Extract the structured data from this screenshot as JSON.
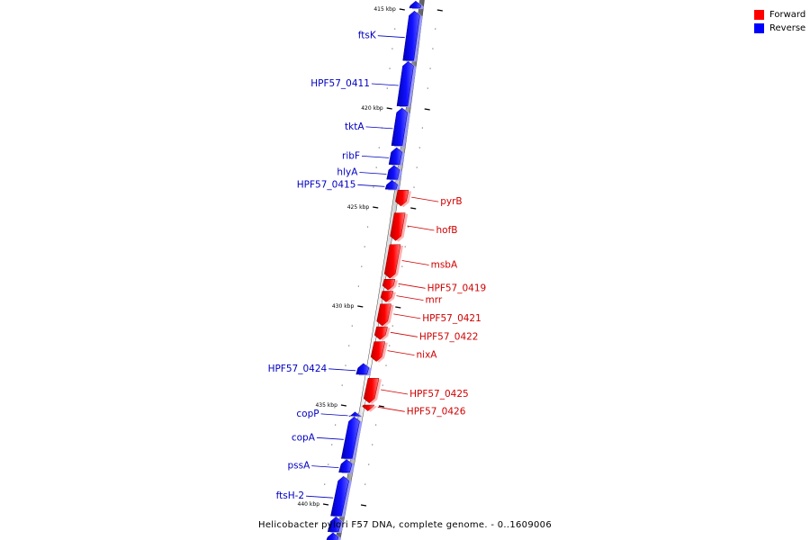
{
  "legend": {
    "items": [
      {
        "label": "Forward",
        "color": "#ff0000"
      },
      {
        "label": "Reverse",
        "color": "#0000ff"
      }
    ]
  },
  "caption": "Helicobacter pylori F57 DNA, complete genome. - 0..1609006",
  "axis": {
    "unit": "kbp",
    "major_ticks": [
      {
        "kbp": 415,
        "label": "415 kbp"
      },
      {
        "kbp": 420,
        "label": "420 kbp"
      },
      {
        "kbp": 425,
        "label": "425 kbp"
      },
      {
        "kbp": 430,
        "label": "430 kbp"
      },
      {
        "kbp": 435,
        "label": "435 kbp"
      },
      {
        "kbp": 440,
        "label": "440 kbp"
      }
    ]
  },
  "genes": [
    {
      "name": "",
      "strand": "reverse",
      "start_kbp": 414.6,
      "end_kbp": 414.95
    },
    {
      "name": "ftsK",
      "strand": "reverse",
      "start_kbp": 415.1,
      "end_kbp": 417.6
    },
    {
      "name": "HPF57_0411",
      "strand": "reverse",
      "start_kbp": 417.65,
      "end_kbp": 419.9
    },
    {
      "name": "tktA",
      "strand": "reverse",
      "start_kbp": 420.0,
      "end_kbp": 421.9
    },
    {
      "name": "ribF",
      "strand": "reverse",
      "start_kbp": 422.0,
      "end_kbp": 422.85
    },
    {
      "name": "hlyA",
      "strand": "reverse",
      "start_kbp": 422.9,
      "end_kbp": 423.6
    },
    {
      "name": "HPF57_0415",
      "strand": "reverse",
      "start_kbp": 423.65,
      "end_kbp": 424.1
    },
    {
      "name": "pyrB",
      "strand": "forward",
      "start_kbp": 424.15,
      "end_kbp": 424.95
    },
    {
      "name": "hofB",
      "strand": "forward",
      "start_kbp": 425.3,
      "end_kbp": 426.7
    },
    {
      "name": "msbA",
      "strand": "forward",
      "start_kbp": 426.9,
      "end_kbp": 428.6
    },
    {
      "name": "HPF57_0419",
      "strand": "forward",
      "start_kbp": 428.65,
      "end_kbp": 429.2
    },
    {
      "name": "mrr",
      "strand": "forward",
      "start_kbp": 429.25,
      "end_kbp": 429.8
    },
    {
      "name": "HPF57_0421",
      "strand": "forward",
      "start_kbp": 429.9,
      "end_kbp": 431.0
    },
    {
      "name": "HPF57_0422",
      "strand": "forward",
      "start_kbp": 431.05,
      "end_kbp": 431.7
    },
    {
      "name": "nixA",
      "strand": "forward",
      "start_kbp": 431.8,
      "end_kbp": 432.8
    },
    {
      "name": "HPF57_0424",
      "strand": "reverse",
      "start_kbp": 432.9,
      "end_kbp": 433.45
    },
    {
      "name": "HPF57_0425",
      "strand": "forward",
      "start_kbp": 433.65,
      "end_kbp": 434.9
    },
    {
      "name": "HPF57_0426",
      "strand": "forward",
      "start_kbp": 435.0,
      "end_kbp": 435.3
    },
    {
      "name": "copP",
      "strand": "reverse",
      "start_kbp": 435.35,
      "end_kbp": 435.55
    },
    {
      "name": "copA",
      "strand": "reverse",
      "start_kbp": 435.6,
      "end_kbp": 437.7
    },
    {
      "name": "pssA",
      "strand": "reverse",
      "start_kbp": 437.75,
      "end_kbp": 438.4
    },
    {
      "name": "ftsH-2",
      "strand": "reverse",
      "start_kbp": 438.6,
      "end_kbp": 440.6
    },
    {
      "name": "",
      "strand": "reverse",
      "start_kbp": 440.65,
      "end_kbp": 441.4
    },
    {
      "name": "",
      "strand": "reverse",
      "start_kbp": 441.45,
      "end_kbp": 442.0
    }
  ]
}
